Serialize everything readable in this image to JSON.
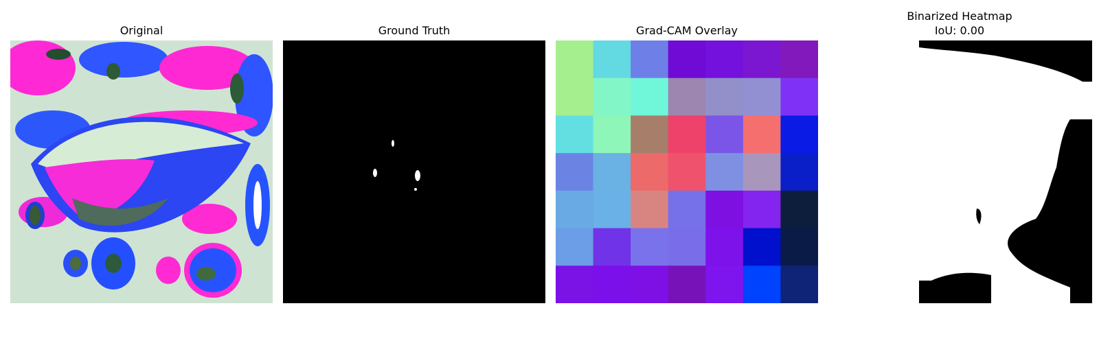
{
  "panels": [
    {
      "title": "Original"
    },
    {
      "title": "Ground Truth"
    },
    {
      "title": "Grad-CAM Overlay"
    },
    {
      "title_line1": "Binarized Heatmap",
      "title_line2": "IoU: 0.00"
    }
  ],
  "gradcam_grid_colors": [
    [
      "#a6ef8f",
      "#63d9e2",
      "#6e7fe8",
      "#6f0bd4",
      "#7411dc",
      "#7b17d0",
      "#8219bc"
    ],
    [
      "#a6ef8f",
      "#82f6c6",
      "#70f6d9",
      "#9d86b0",
      "#938fc8",
      "#9290d2",
      "#7f32f5"
    ],
    [
      "#63dfe2",
      "#8ef6b8",
      "#a67e6a",
      "#ee426a",
      "#7a55e8",
      "#f56f6f",
      "#0a1be6"
    ],
    [
      "#6b84e3",
      "#6ab1e4",
      "#ec6a6a",
      "#ef526d",
      "#7f90e2",
      "#a996bc",
      "#0a1fc7"
    ],
    [
      "#69aae5",
      "#69b1e6",
      "#d88582",
      "#7671e8",
      "#7e10e2",
      "#8324ef",
      "#0d1e3d"
    ],
    [
      "#6b9ee6",
      "#7133e8",
      "#7a72ea",
      "#7a6de9",
      "#7d12eb",
      "#0010cc",
      "#0b1b47"
    ],
    [
      "#7b12e6",
      "#7b10eb",
      "#7e10e6",
      "#7712b8",
      "#7e14ee",
      "#0043fe",
      "#0f2377"
    ]
  ],
  "colors": {
    "background": "#ffffff",
    "mask_background": "#000000",
    "mask_foreground": "#ffffff"
  }
}
